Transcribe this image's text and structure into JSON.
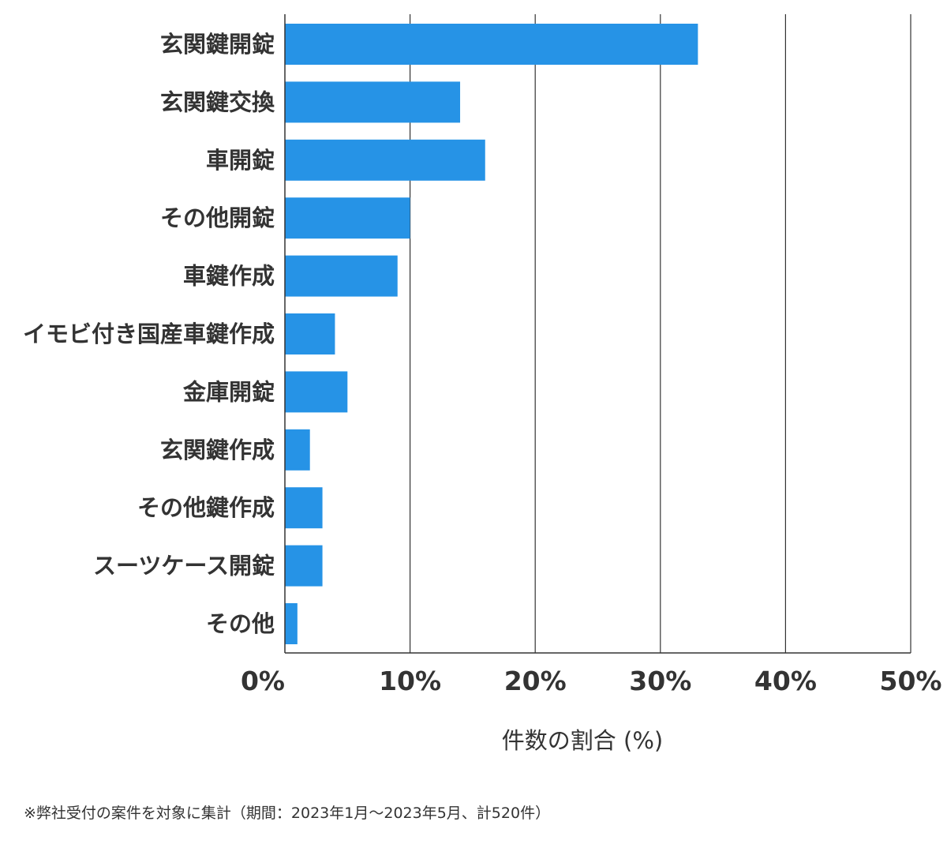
{
  "chart_data": {
    "type": "bar",
    "orientation": "horizontal",
    "categories": [
      "玄関鍵開錠",
      "玄関鍵交換",
      "車開錠",
      "その他開錠",
      "車鍵作成",
      "イモビ付き国産車鍵作成",
      "金庫開錠",
      "玄関鍵作成",
      "その他鍵作成",
      "スーツケース開錠",
      "その他"
    ],
    "values": [
      33.0,
      14.0,
      16.0,
      10.0,
      9.0,
      4.0,
      5.0,
      2.0,
      3.0,
      3.0,
      1.0
    ],
    "xlabel": "件数の割合 (%)",
    "ylabel": "",
    "xlim": [
      0,
      50
    ],
    "xticks": [
      0,
      10,
      20,
      30,
      40,
      50
    ],
    "xtick_labels": [
      "0%",
      "10%",
      "20%",
      "30%",
      "40%",
      "50%"
    ],
    "grid": "vertical",
    "bar_color": "#2693e6"
  },
  "footnote": "※弊社受付の案件を対象に集計（期間：2023年1月～2023年5月、計520件）"
}
